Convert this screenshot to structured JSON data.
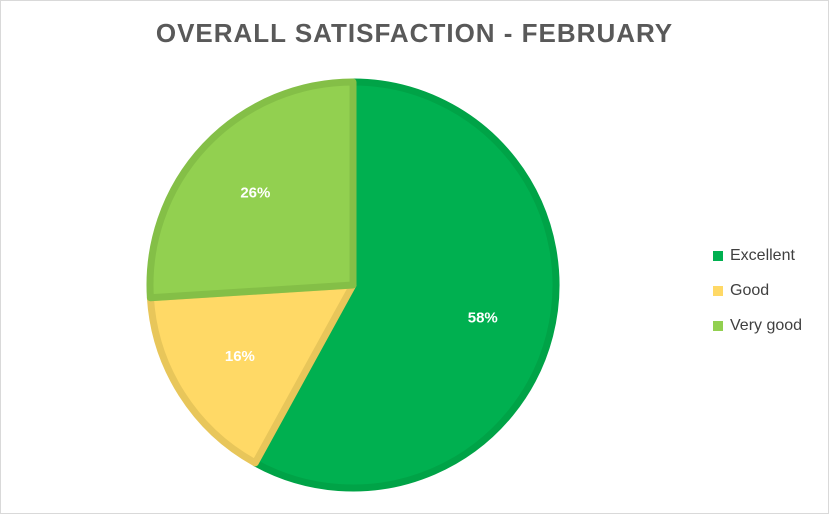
{
  "chart_data": {
    "type": "pie",
    "title": "OVERALL SATISFACTION - FEBRUARY",
    "categories": [
      "Excellent",
      "Good",
      "Very good"
    ],
    "values": [
      58,
      16,
      26
    ],
    "labels": [
      "58%",
      "16%",
      "26%"
    ],
    "colors": [
      "#00b050",
      "#ffd966",
      "#92d050"
    ],
    "edge_colors": [
      "#00a347",
      "#e8c65a",
      "#84bf47"
    ],
    "legend_position": "right",
    "start_angle_deg": 0,
    "direction": "clockwise"
  }
}
